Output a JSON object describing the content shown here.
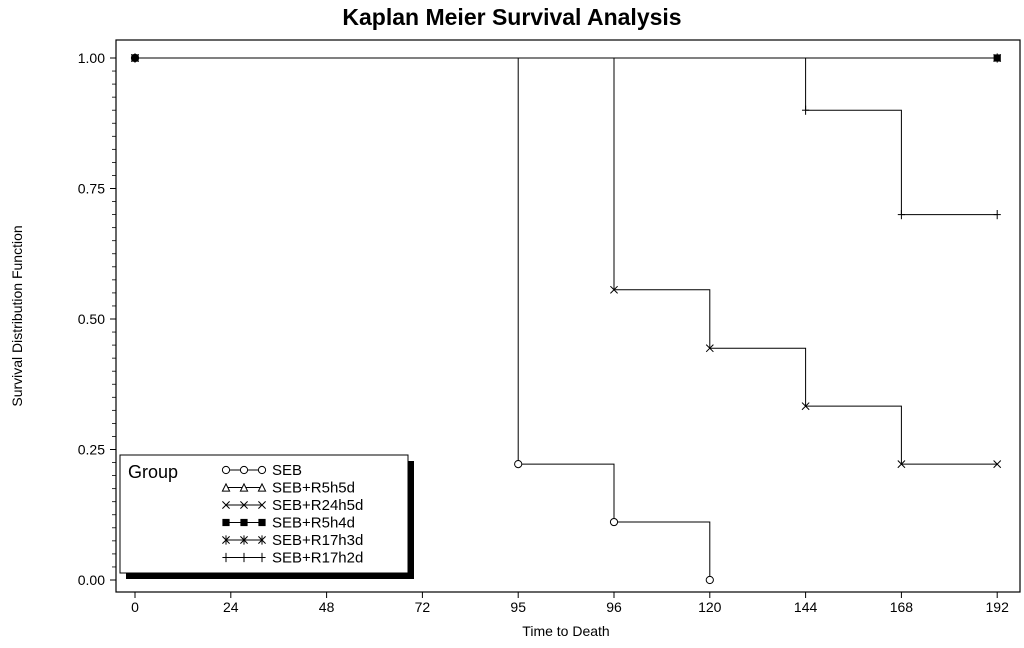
{
  "chart_data": {
    "type": "line",
    "title": "Kaplan Meier Survival Analysis",
    "xlabel": "Time to Death",
    "ylabel": "Survival Distribution Function",
    "x_tick_labels": [
      "0",
      "24",
      "48",
      "72",
      "95",
      "96",
      "120",
      "144",
      "168",
      "192"
    ],
    "y_tick_labels": [
      "0.00",
      "0.25",
      "0.50",
      "0.75",
      "1.00"
    ],
    "ylim": [
      0,
      1
    ],
    "step": true,
    "grid": false,
    "legend_title": "Group",
    "legend_position": "bottom-left",
    "series": [
      {
        "name": "SEB",
        "marker": "circle",
        "x": [
          "0",
          "95",
          "96",
          "120"
        ],
        "y": [
          1.0,
          0.222,
          0.111,
          0.0
        ]
      },
      {
        "name": "SEB+R5h5d",
        "marker": "triangle",
        "x": [],
        "y": []
      },
      {
        "name": "SEB+R24h5d",
        "marker": "x",
        "x": [
          "0",
          "96",
          "120",
          "144",
          "168",
          "192"
        ],
        "y": [
          1.0,
          0.556,
          0.444,
          0.333,
          0.222,
          0.222
        ]
      },
      {
        "name": "SEB+R5h4d",
        "marker": "filled-circle",
        "x": [
          "0",
          "192"
        ],
        "y": [
          1.0,
          1.0
        ]
      },
      {
        "name": "SEB+R17h3d",
        "marker": "star",
        "x": [
          "0",
          "192"
        ],
        "y": [
          1.0,
          1.0
        ]
      },
      {
        "name": "SEB+R17h2d",
        "marker": "plus",
        "x": [
          "0",
          "144",
          "168",
          "192"
        ],
        "y": [
          1.0,
          0.9,
          0.7,
          0.7
        ]
      }
    ]
  }
}
